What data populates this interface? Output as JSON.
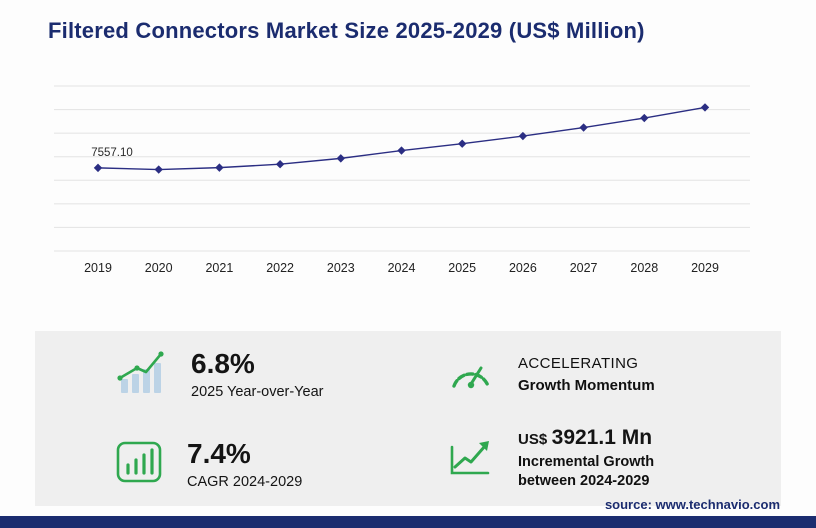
{
  "header": {
    "title": "Filtered Connectors Market Size 2025-2029 (US$ Million)"
  },
  "chart_data": {
    "type": "line",
    "title": "Filtered Connectors Market Size 2025-2029 (US$ Million)",
    "x": [
      "2019",
      "2020",
      "2021",
      "2022",
      "2023",
      "2024",
      "2025",
      "2026",
      "2027",
      "2028",
      "2029"
    ],
    "series": [
      {
        "name": "Market Size (US$ Million)",
        "values": [
          7557.1,
          7404,
          7580,
          7890,
          8420,
          9133.5,
          9754.6,
          10449,
          11222,
          12086,
          13054.6
        ]
      }
    ],
    "point_label": "7557.10",
    "point_label_index": 0,
    "xlabel": "",
    "ylabel": "",
    "ylim": [
      0,
      15000
    ],
    "grid": true,
    "gridline_count": 8,
    "legend": "none"
  },
  "stats": {
    "yoy": {
      "value": "6.8%",
      "label": "2025 Year-over-Year"
    },
    "momentum": {
      "line1": "ACCELERATING",
      "line2": "Growth Momentum"
    },
    "cagr": {
      "value": "7.4%",
      "label": "CAGR 2024-2029"
    },
    "incremental": {
      "currency": "US$",
      "value": "3921.1 Mn",
      "line1": "Incremental Growth",
      "line2": "between 2024-2029"
    }
  },
  "footer": {
    "source": "source: www.technavio.com"
  },
  "colors": {
    "navy": "#1b2c6f",
    "line": "#2b2e83",
    "green": "#2fa84f",
    "panel_bg": "#efefef",
    "grid": "#e3e3e3",
    "bar_light": "#bcd3e6"
  }
}
